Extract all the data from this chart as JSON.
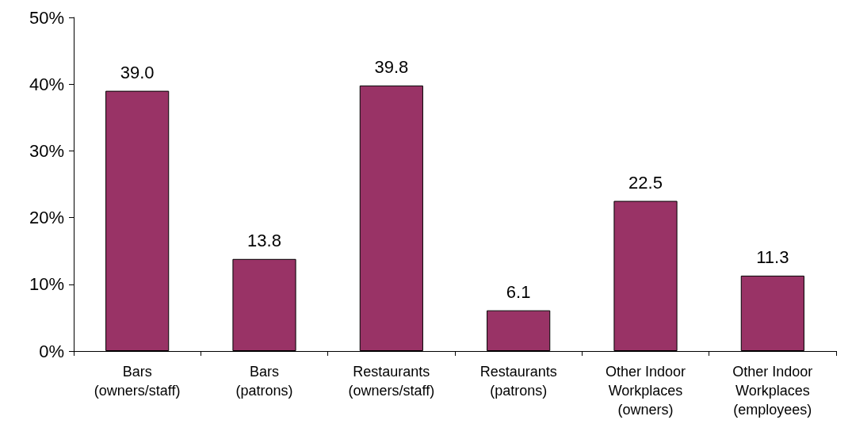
{
  "chart_data": {
    "type": "bar",
    "categories": [
      "Bars\n(owners/staff)",
      "Bars\n(patrons)",
      "Restaurants\n(owners/staff)",
      "Restaurants\n(patrons)",
      "Other Indoor\nWorkplaces\n(owners)",
      "Other Indoor\nWorkplaces\n(employees)"
    ],
    "values": [
      39.0,
      13.8,
      39.8,
      6.1,
      22.5,
      11.3
    ],
    "value_labels": [
      "39.0",
      "13.8",
      "39.8",
      "6.1",
      "22.5",
      "11.3"
    ],
    "color": "#993366",
    "ylim": [
      0,
      50
    ],
    "yticks": [
      {
        "value": 0,
        "label": "0%"
      },
      {
        "value": 10,
        "label": "10%"
      },
      {
        "value": 20,
        "label": "20%"
      },
      {
        "value": 30,
        "label": "30%"
      },
      {
        "value": 40,
        "label": "40%"
      },
      {
        "value": 50,
        "label": "50%"
      }
    ]
  }
}
